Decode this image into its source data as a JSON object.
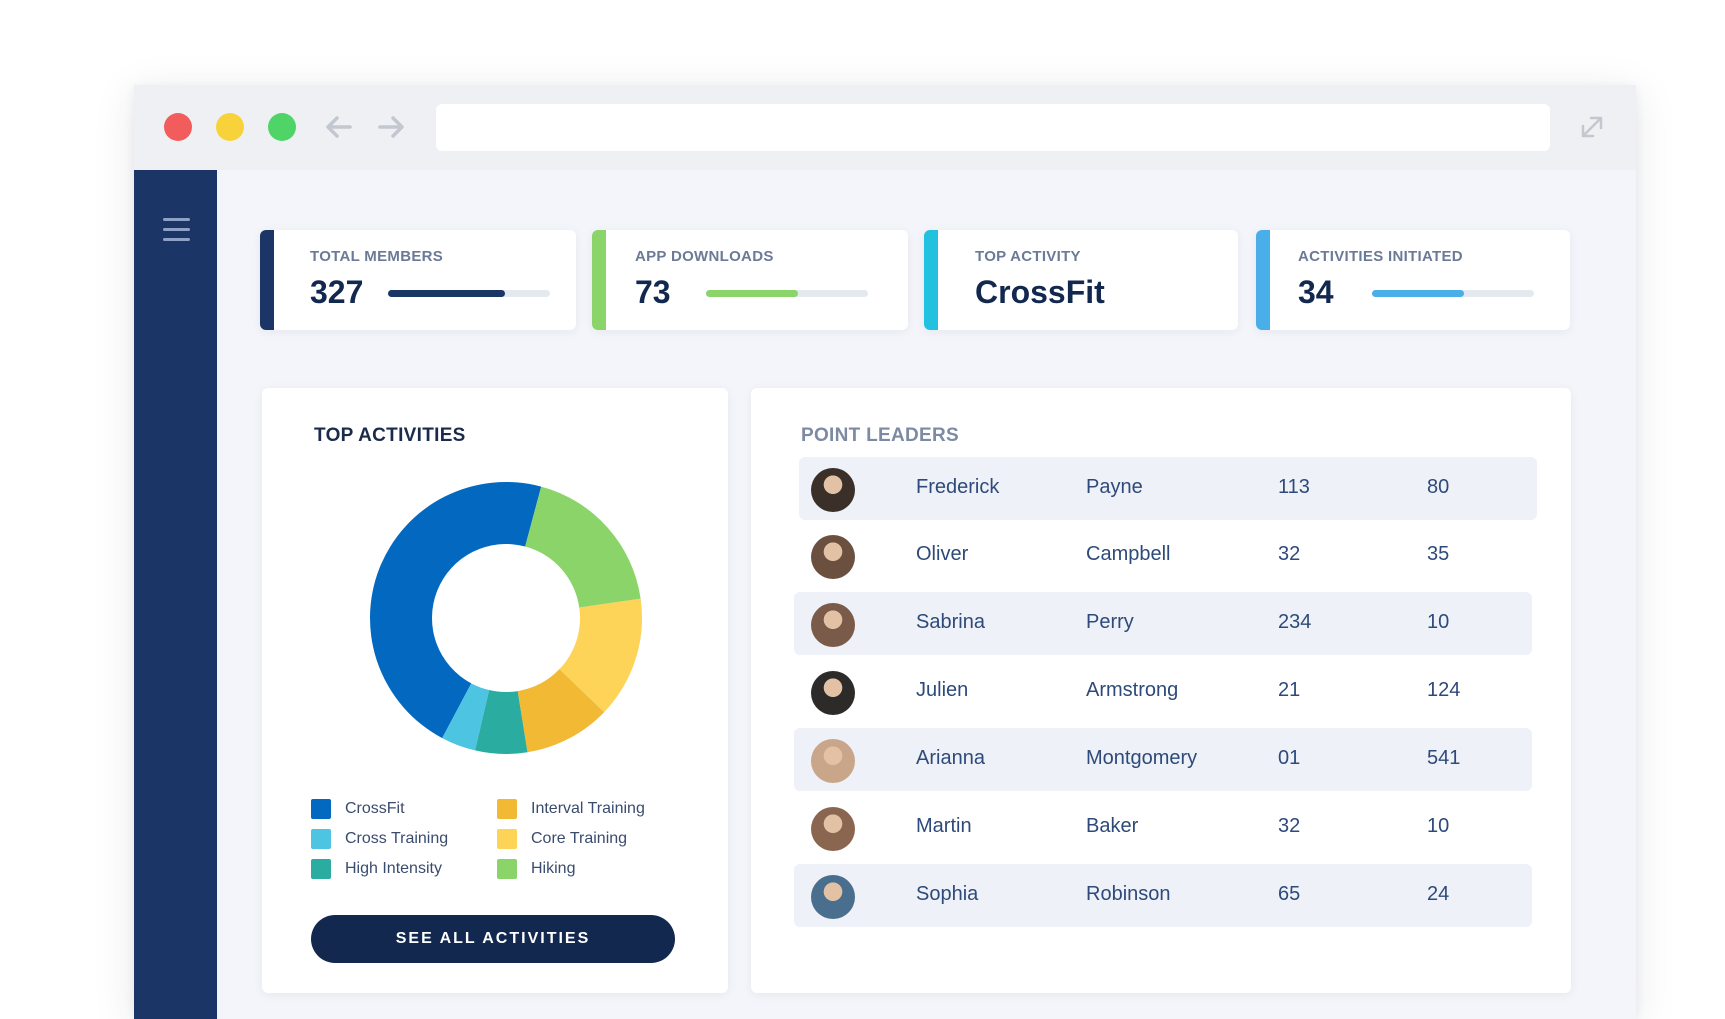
{
  "browser": {
    "url": "",
    "icons": {
      "back": "arrow-left-icon",
      "forward": "arrow-right-icon",
      "expand": "expand-icon"
    }
  },
  "sidebar": {
    "menu_icon": "hamburger-menu-icon",
    "color": "#1c3567"
  },
  "stats": [
    {
      "label": "TOTAL MEMBERS",
      "value": "327",
      "progress": 0.72,
      "color": "#1c3567"
    },
    {
      "label": "APP DOWNLOADS",
      "value": "73",
      "progress": 0.57,
      "color": "#8bd46a"
    },
    {
      "label": "TOP ACTIVITY",
      "value": "CrossFit",
      "color": "#22c1e0"
    },
    {
      "label": "ACTIVITIES INITIATED",
      "value": "34",
      "progress": 0.57,
      "color": "#4aaee8"
    }
  ],
  "top_activities": {
    "title": "TOP ACTIVITIES",
    "button_label": "SEE ALL ACTIVITIES"
  },
  "chart_data": {
    "type": "pie",
    "donut": true,
    "title": "TOP ACTIVITIES",
    "categories": [
      "CrossFit",
      "Cross Training",
      "High Intensity",
      "Interval Training",
      "Core Training",
      "Hiking"
    ],
    "values": [
      45,
      4,
      6,
      10,
      14,
      18
    ],
    "colors": [
      "#0369c0",
      "#4ec4e3",
      "#2aada0",
      "#f2b935",
      "#fdd358",
      "#8bd46a"
    ],
    "legend_position": "bottom"
  },
  "point_leaders": {
    "title": "POINT LEADERS",
    "rows": [
      {
        "first": "Frederick",
        "last": "Payne",
        "col3": "113",
        "col4": "80",
        "avatar_color": "#3b3029"
      },
      {
        "first": "Oliver",
        "last": "Campbell",
        "col3": "32",
        "col4": "35",
        "avatar_color": "#6b5040"
      },
      {
        "first": "Sabrina",
        "last": "Perry",
        "col3": "234",
        "col4": "10",
        "avatar_color": "#7a5a48"
      },
      {
        "first": "Julien",
        "last": "Armstrong",
        "col3": "21",
        "col4": "124",
        "avatar_color": "#2d2a2a"
      },
      {
        "first": "Arianna",
        "last": "Montgomery",
        "col3": "01",
        "col4": "541",
        "avatar_color": "#c9a58a"
      },
      {
        "first": "Martin",
        "last": "Baker",
        "col3": "32",
        "col4": "10",
        "avatar_color": "#8a6650"
      },
      {
        "first": "Sophia",
        "last": "Robinson",
        "col3": "65",
        "col4": "24",
        "avatar_color": "#4a6f8e"
      }
    ]
  }
}
